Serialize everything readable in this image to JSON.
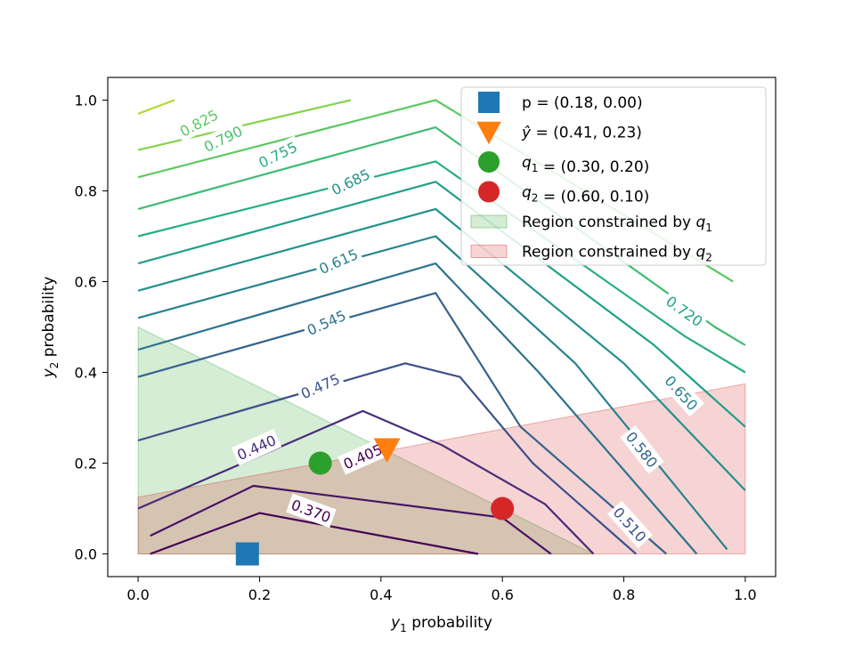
{
  "chart_data": {
    "type": "contour",
    "xlabel": {
      "italic": "y",
      "sub": "1",
      "rest": " probability"
    },
    "ylabel": {
      "italic": "y",
      "sub": "2",
      "rest": " probability"
    },
    "xlim": [
      -0.05,
      1.05
    ],
    "ylim": [
      -0.05,
      1.05
    ],
    "x_ticks": [
      {
        "value": 0.0,
        "label": "0.0"
      },
      {
        "value": 0.2,
        "label": "0.2"
      },
      {
        "value": 0.4,
        "label": "0.4"
      },
      {
        "value": 0.6,
        "label": "0.6"
      },
      {
        "value": 0.8,
        "label": "0.8"
      },
      {
        "value": 1.0,
        "label": "1.0"
      }
    ],
    "y_ticks": [
      {
        "value": 0.0,
        "label": "0.0"
      },
      {
        "value": 0.2,
        "label": "0.2"
      },
      {
        "value": 0.4,
        "label": "0.4"
      },
      {
        "value": 0.6,
        "label": "0.6"
      },
      {
        "value": 0.8,
        "label": "0.8"
      },
      {
        "value": 1.0,
        "label": "1.0"
      }
    ],
    "regions": [
      {
        "name": "q1-region",
        "color": "#2ca02c",
        "opacity": 0.2,
        "polygon": [
          [
            0,
            0
          ],
          [
            0.75,
            0
          ],
          [
            0,
            0.5
          ]
        ]
      },
      {
        "name": "q2-region",
        "color": "#d62728",
        "opacity": 0.2,
        "polygon": [
          [
            0,
            0
          ],
          [
            1,
            0
          ],
          [
            1,
            0.375
          ],
          [
            0,
            0.125
          ]
        ]
      }
    ],
    "contours": [
      {
        "level": 0.37,
        "color": "#440154",
        "points": [
          [
            0.02,
            0
          ],
          [
            0.2,
            0.09
          ],
          [
            0.56,
            0
          ]
        ]
      },
      {
        "level": 0.405,
        "color": "#471365",
        "points": [
          [
            0.02,
            0.04
          ],
          [
            0.19,
            0.15
          ],
          [
            0.6,
            0.08
          ],
          [
            0.68,
            0
          ]
        ]
      },
      {
        "level": 0.44,
        "color": "#472c7a",
        "points": [
          [
            0,
            0.1
          ],
          [
            0.37,
            0.315
          ],
          [
            0.5,
            0.24
          ],
          [
            0.67,
            0.11
          ],
          [
            0.75,
            0
          ]
        ]
      },
      {
        "level": 0.475,
        "color": "#3b518b",
        "points": [
          [
            0,
            0.25
          ],
          [
            0.44,
            0.42
          ],
          [
            0.53,
            0.39
          ],
          [
            0.65,
            0.2
          ],
          [
            0.82,
            0
          ]
        ]
      },
      {
        "level": 0.51,
        "color": "#33638d",
        "points": [
          [
            0,
            0.39
          ],
          [
            0.49,
            0.575
          ],
          [
            0.63,
            0.28
          ],
          [
            0.87,
            0
          ]
        ]
      },
      {
        "level": 0.545,
        "color": "#2c728e",
        "points": [
          [
            0,
            0.45
          ],
          [
            0.49,
            0.64
          ],
          [
            0.66,
            0.4
          ],
          [
            0.92,
            0
          ]
        ]
      },
      {
        "level": 0.58,
        "color": "#26828e",
        "points": [
          [
            0,
            0.52
          ],
          [
            0.49,
            0.7
          ],
          [
            0.72,
            0.42
          ],
          [
            0.97,
            0.01
          ]
        ]
      },
      {
        "level": 0.615,
        "color": "#21918c",
        "points": [
          [
            0,
            0.58
          ],
          [
            0.49,
            0.76
          ],
          [
            0.8,
            0.42
          ],
          [
            1,
            0.14
          ]
        ]
      },
      {
        "level": 0.65,
        "color": "#1fa088",
        "points": [
          [
            0,
            0.64
          ],
          [
            0.49,
            0.82
          ],
          [
            0.85,
            0.46
          ],
          [
            1,
            0.28
          ]
        ]
      },
      {
        "level": 0.685,
        "color": "#28ae80",
        "points": [
          [
            0,
            0.7
          ],
          [
            0.49,
            0.865
          ],
          [
            0.9,
            0.48
          ],
          [
            1,
            0.4
          ]
        ]
      },
      {
        "level": 0.72,
        "color": "#3fbc73",
        "points": [
          [
            0,
            0.76
          ],
          [
            0.49,
            0.94
          ],
          [
            0.95,
            0.5
          ],
          [
            1,
            0.46
          ]
        ]
      },
      {
        "level": 0.755,
        "color": "#5ec962",
        "points": [
          [
            0,
            0.83
          ],
          [
            0.49,
            1.0
          ],
          [
            0.98,
            0.6
          ]
        ]
      },
      {
        "level": 0.79,
        "color": "#84d44b",
        "points": [
          [
            0,
            0.89
          ],
          [
            0.35,
            1.0
          ]
        ]
      },
      {
        "level": 0.825,
        "color": "#addc30",
        "points": [
          [
            0,
            0.97
          ],
          [
            0.06,
            1.0
          ]
        ]
      }
    ],
    "contour_labels": [
      {
        "text": "0.825",
        "x": 0.1,
        "y": 0.95,
        "angle": -28,
        "color": "#5ec962"
      },
      {
        "text": "0.790",
        "x": 0.14,
        "y": 0.915,
        "angle": -26,
        "color": "#4bc16d"
      },
      {
        "text": "0.755",
        "x": 0.23,
        "y": 0.88,
        "angle": -26,
        "color": "#28ae80"
      },
      {
        "text": "0.685",
        "x": 0.35,
        "y": 0.82,
        "angle": -26,
        "color": "#21918c"
      },
      {
        "text": "0.615",
        "x": 0.33,
        "y": 0.645,
        "angle": -24,
        "color": "#26828e"
      },
      {
        "text": "0.545",
        "x": 0.31,
        "y": 0.51,
        "angle": -24,
        "color": "#2c728e"
      },
      {
        "text": "0.475",
        "x": 0.3,
        "y": 0.37,
        "angle": -24,
        "color": "#3b528b"
      },
      {
        "text": "0.440",
        "x": 0.195,
        "y": 0.235,
        "angle": -24,
        "color": "#472c7a"
      },
      {
        "text": "0.405",
        "x": 0.37,
        "y": 0.215,
        "angle": -24,
        "color": "#440154"
      },
      {
        "text": "0.370",
        "x": 0.285,
        "y": 0.095,
        "angle": 20,
        "color": "#440154"
      },
      {
        "text": "0.720",
        "x": 0.9,
        "y": 0.535,
        "angle": 36,
        "color": "#1fa088"
      },
      {
        "text": "0.650",
        "x": 0.895,
        "y": 0.355,
        "angle": 48,
        "color": "#26828e"
      },
      {
        "text": "0.580",
        "x": 0.83,
        "y": 0.23,
        "angle": 52,
        "color": "#33638d"
      },
      {
        "text": "0.510",
        "x": 0.81,
        "y": 0.065,
        "angle": 48,
        "color": "#3b518b"
      }
    ],
    "points": [
      {
        "name": "p-marker",
        "x": 0.18,
        "y": 0.0,
        "marker": "square",
        "color": "#1f77b4"
      },
      {
        "name": "yhat-marker",
        "x": 0.41,
        "y": 0.23,
        "marker": "triangle-down",
        "color": "#ff7f0e"
      },
      {
        "name": "q1-marker",
        "x": 0.3,
        "y": 0.2,
        "marker": "circle",
        "color": "#2ca02c"
      },
      {
        "name": "q2-marker",
        "x": 0.6,
        "y": 0.1,
        "marker": "circle",
        "color": "#d62728"
      }
    ],
    "legend": {
      "placement": "upper right",
      "entries": [
        {
          "name": "legend-p",
          "marker": "square",
          "color": "#1f77b4",
          "parts": [
            {
              "t": "p = (0.18, 0.00)"
            }
          ]
        },
        {
          "name": "legend-yhat",
          "marker": "triangle-down",
          "color": "#ff7f0e",
          "parts": [
            {
              "t": "ŷ",
              "i": true
            },
            {
              "t": " = (0.41, 0.23)"
            }
          ]
        },
        {
          "name": "legend-q1",
          "marker": "circle",
          "color": "#2ca02c",
          "parts": [
            {
              "t": "q",
              "i": true
            },
            {
              "t": "1",
              "s": true
            },
            {
              "t": " = (0.30, 0.20)"
            }
          ]
        },
        {
          "name": "legend-q2",
          "marker": "circle",
          "color": "#d62728",
          "parts": [
            {
              "t": "q",
              "i": true
            },
            {
              "t": "2",
              "s": true
            },
            {
              "t": " = (0.60, 0.10)"
            }
          ]
        },
        {
          "name": "legend-q1-region",
          "marker": "patch",
          "color": "#2ca02c",
          "parts": [
            {
              "t": "Region constrained by "
            },
            {
              "t": "q",
              "i": true
            },
            {
              "t": "1",
              "s": true
            }
          ]
        },
        {
          "name": "legend-q2-region",
          "marker": "patch",
          "color": "#d62728",
          "parts": [
            {
              "t": "Region constrained by "
            },
            {
              "t": "q",
              "i": true
            },
            {
              "t": "2",
              "s": true
            }
          ]
        }
      ]
    }
  }
}
